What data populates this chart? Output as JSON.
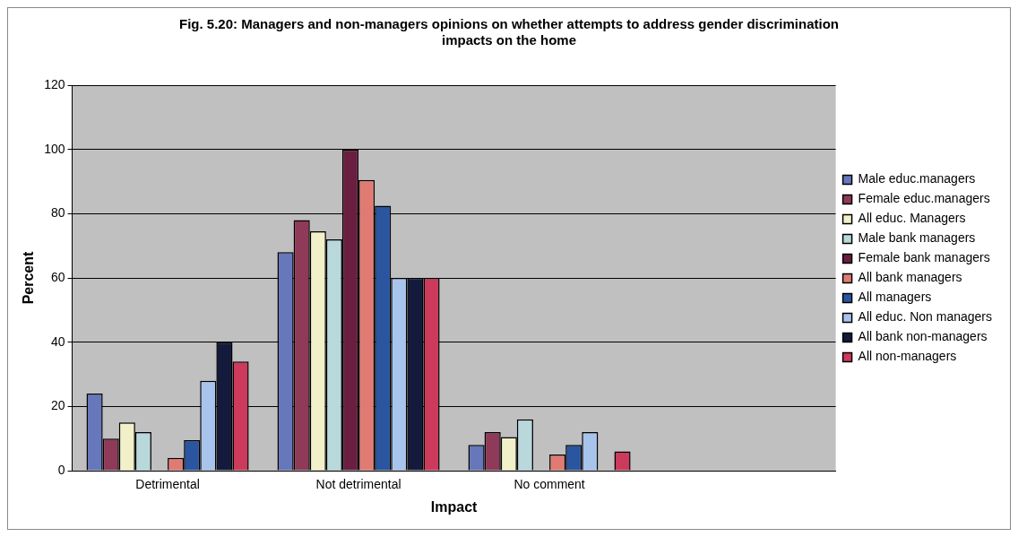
{
  "chart_data": {
    "type": "bar",
    "title": [
      "Fig. 5.20: Managers and non-managers opinions on whether attempts to address gender discrimination",
      "impacts on the home"
    ],
    "xlabel": "Impact",
    "ylabel": "Percent",
    "categories": [
      "Detrimental",
      "Not detrimental",
      "No comment",
      null
    ],
    "ylim": [
      0,
      120
    ],
    "yticks": [
      0,
      20,
      40,
      60,
      80,
      100,
      120
    ],
    "grid": "y",
    "legend": "right",
    "series": [
      {
        "name": "Male educ.managers",
        "color": "#6677bb",
        "values": [
          24,
          68,
          8,
          null
        ]
      },
      {
        "name": "Female educ.managers",
        "color": "#8e3a58",
        "values": [
          10,
          78,
          12,
          null
        ]
      },
      {
        "name": "All educ. Managers",
        "color": "#f2f0c8",
        "values": [
          15,
          74.5,
          10.5,
          null
        ]
      },
      {
        "name": "Male bank managers",
        "color": "#b8d8dc",
        "values": [
          12,
          72,
          16,
          null
        ]
      },
      {
        "name": "Female bank managers",
        "color": "#6a1e40",
        "values": [
          0,
          100,
          0,
          null
        ]
      },
      {
        "name": "All bank managers",
        "color": "#e07b74",
        "values": [
          4,
          90.5,
          5,
          null
        ]
      },
      {
        "name": "All managers",
        "color": "#2a55a0",
        "values": [
          9.5,
          82.5,
          8,
          null
        ]
      },
      {
        "name": "All educ. Non managers",
        "color": "#a8c4ec",
        "values": [
          28,
          60,
          12,
          null
        ]
      },
      {
        "name": "All bank non-managers",
        "color": "#141a3c",
        "values": [
          40,
          60,
          0,
          null
        ]
      },
      {
        "name": "All non-managers",
        "color": "#cc3a5c",
        "values": [
          34,
          60,
          6,
          null
        ]
      }
    ]
  }
}
